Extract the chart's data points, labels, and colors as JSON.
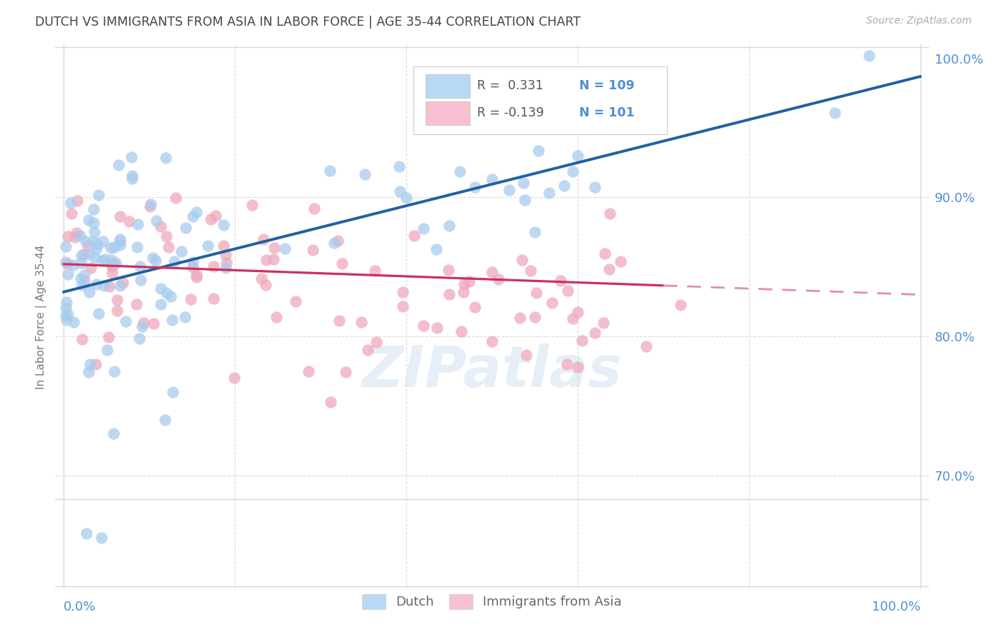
{
  "title": "DUTCH VS IMMIGRANTS FROM ASIA IN LABOR FORCE | AGE 35-44 CORRELATION CHART",
  "source": "Source: ZipAtlas.com",
  "ylabel": "In Labor Force | Age 35-44",
  "dutch_R": 0.331,
  "dutch_N": 109,
  "asia_R": -0.139,
  "asia_N": 101,
  "dutch_color": "#a8ccee",
  "asia_color": "#f0a8bc",
  "dutch_line_color": "#2060a0",
  "asia_line_solid_color": "#cc3060",
  "asia_line_dashed_color": "#e090a8",
  "background_color": "#ffffff",
  "grid_color": "#d8d8d8",
  "title_color": "#444444",
  "axis_label_color": "#5090d0",
  "legend_dutch_color": "#b8d8f4",
  "legend_asia_color": "#f8c0d0",
  "watermark_color": "#c8ddf0",
  "source_color": "#aaaaaa"
}
